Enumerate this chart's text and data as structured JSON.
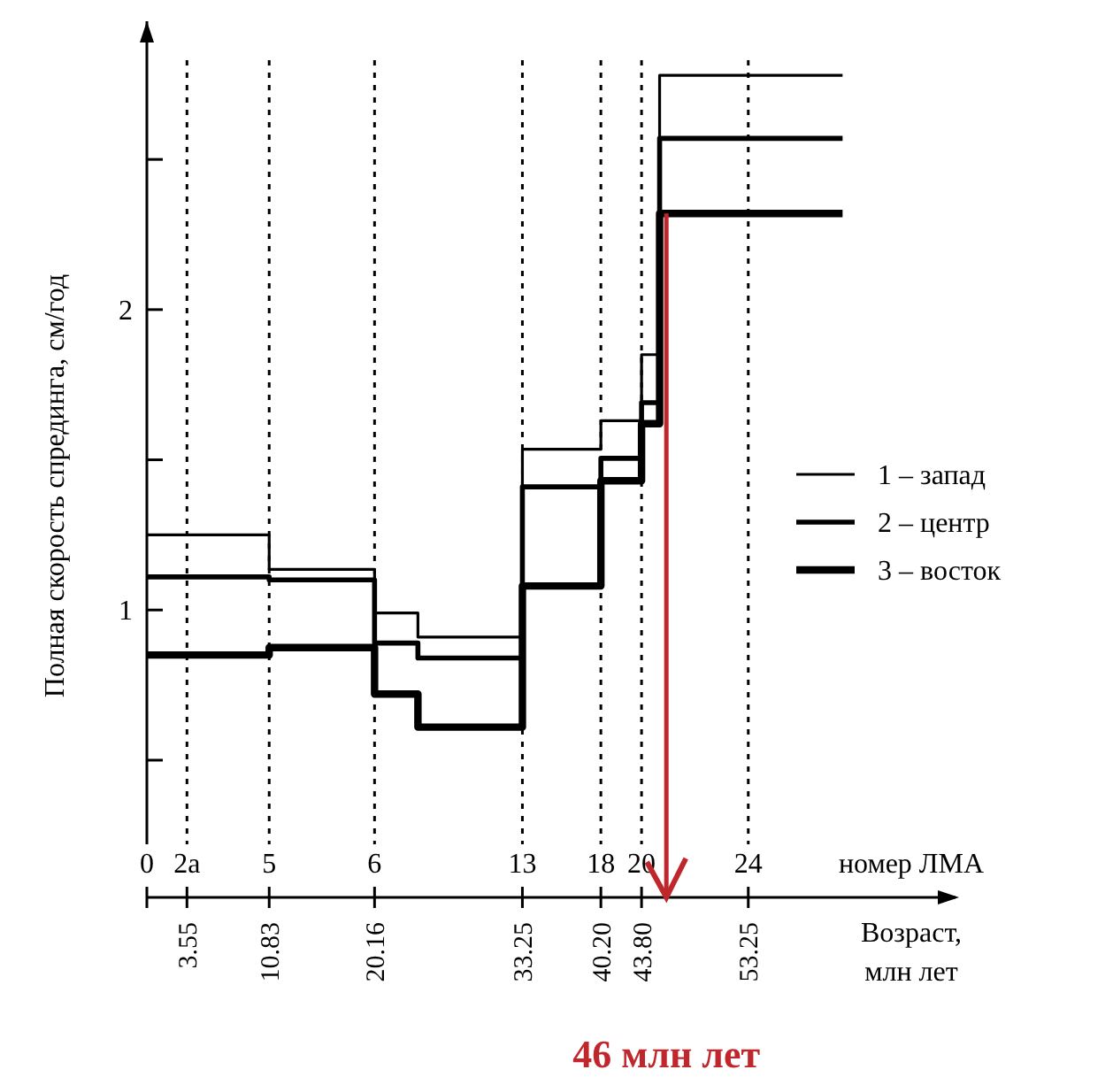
{
  "chart_data": {
    "type": "step",
    "ylabel": "Полная скорость спрединга, см/год",
    "xlabel": "Возраст, млн лет",
    "x": [
      0,
      10.83,
      20.16,
      24,
      33.25,
      40.2,
      43.8,
      45.4,
      61.6
    ],
    "series": [
      {
        "name": "1 – запад",
        "color": "#000000",
        "values": [
          1.25,
          1.135,
          0.99,
          0.91,
          1.535,
          1.63,
          1.85,
          2.78,
          2.78
        ]
      },
      {
        "name": "2 – центр",
        "color": "#000000",
        "values": [
          1.11,
          1.1,
          0.89,
          0.84,
          1.41,
          1.505,
          1.69,
          2.57,
          2.57
        ]
      },
      {
        "name": "3 – восток",
        "color": "#000000",
        "values": [
          0.85,
          0.875,
          0.72,
          0.61,
          1.08,
          1.43,
          1.62,
          2.32,
          2.32
        ]
      }
    ],
    "xlim": [
      0,
      71.6
    ],
    "ylim": [
      0.22,
      2.96
    ],
    "xticks": [
      {
        "value": 0,
        "label": null
      },
      3.55,
      10.83,
      20.16,
      33.25,
      {
        "value": 40.2,
        "label": "40.20"
      },
      {
        "value": 43.8,
        "label": "43.80"
      },
      53.25
    ],
    "yticks": [
      {
        "value": 0.5,
        "label": null
      },
      1,
      {
        "value": 1.5,
        "label": null
      },
      2,
      {
        "value": 2.5,
        "label": null
      }
    ],
    "ref_lines": [
      {
        "axis": "x",
        "value": 3.55,
        "line_style": "dotted"
      },
      {
        "axis": "x",
        "value": 10.83,
        "line_style": "dotted"
      },
      {
        "axis": "x",
        "value": 20.16,
        "line_style": "dotted"
      },
      {
        "axis": "x",
        "value": 33.25,
        "line_style": "dotted"
      },
      {
        "axis": "x",
        "value": 40.2,
        "line_style": "dotted"
      },
      {
        "axis": "x",
        "value": 43.8,
        "line_style": "dotted"
      },
      {
        "axis": "x",
        "value": 53.25,
        "line_style": "dotted"
      },
      {
        "axis": "x",
        "value": 46,
        "label": "46 млн лет",
        "color": "#c0272d",
        "line_style": "solid"
      }
    ],
    "legend": "right",
    "line_style": "solid",
    "annotations": [
      "0",
      "2a",
      "5",
      "6",
      "13",
      "18",
      "20",
      "24",
      "номер ЛМА"
    ]
  }
}
